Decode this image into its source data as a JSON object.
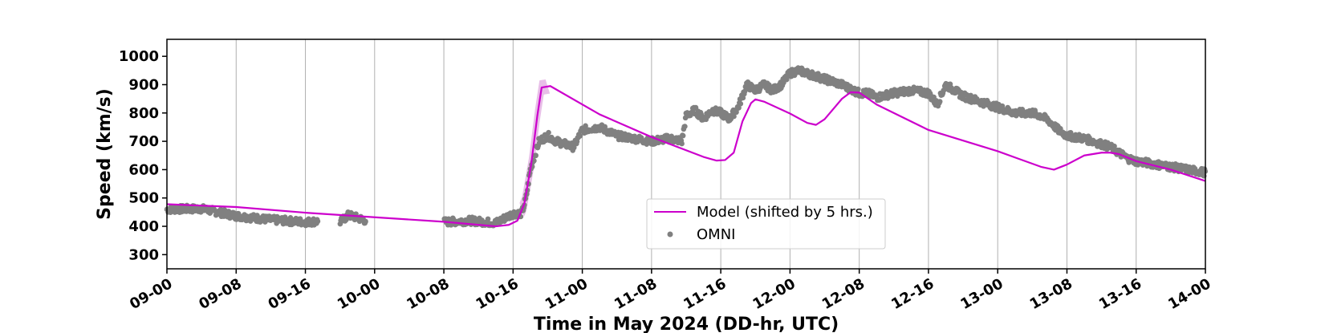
{
  "chart_data": {
    "type": "line",
    "xlabel": "Time in May 2024 (DD-hr, UTC)",
    "ylabel": "Speed (km/s)",
    "x_unit": "hours since 09-00",
    "xlim": [
      0,
      120
    ],
    "ylim": [
      250,
      1060
    ],
    "x_tick_labels": [
      "09-00",
      "09-08",
      "09-16",
      "10-00",
      "10-08",
      "10-16",
      "11-00",
      "11-08",
      "11-16",
      "12-00",
      "12-08",
      "12-16",
      "13-00",
      "13-08",
      "13-16",
      "14-00"
    ],
    "x_tick_values": [
      0,
      8,
      16,
      24,
      32,
      40,
      48,
      56,
      64,
      72,
      80,
      88,
      96,
      104,
      112,
      120
    ],
    "y_ticks": [
      300,
      400,
      500,
      600,
      700,
      800,
      900,
      1000
    ],
    "grid": "vertical lines at x ticks",
    "legend": {
      "position": "lower-center",
      "entries": [
        {
          "label": "Model (shifted by 5 hrs.)",
          "style": "line",
          "color": "#cc00cc"
        },
        {
          "label": "OMNI",
          "style": "marker",
          "color": "#808080"
        }
      ]
    },
    "series": [
      {
        "name": "Model (shifted by 5 hrs.)",
        "color": "#cc00cc",
        "x": [
          0,
          8,
          16,
          24,
          32,
          38,
          39.5,
          40.5,
          41.3,
          42.1,
          42.8,
          43.3,
          44.3,
          50,
          56,
          62,
          63.5,
          64.5,
          65.5,
          66.5,
          67.5,
          68,
          69,
          72,
          74,
          75,
          76,
          78,
          79,
          80,
          82,
          88,
          96,
          101,
          102.5,
          104,
          106,
          108,
          109,
          110,
          112,
          116,
          120
        ],
        "y": [
          478,
          468,
          448,
          432,
          416,
          400,
          405,
          420,
          480,
          620,
          790,
          890,
          895,
          795,
          715,
          645,
          632,
          634,
          660,
          770,
          835,
          848,
          840,
          798,
          765,
          758,
          778,
          850,
          873,
          872,
          830,
          740,
          665,
          610,
          600,
          618,
          650,
          660,
          660,
          655,
          630,
          600,
          560
        ],
        "band": {
          "color": "#e0a8e0",
          "x_range": [
            41,
            44
          ],
          "half_width": 25
        }
      },
      {
        "name": "OMNI",
        "color": "#808080",
        "knots_x": [
          0,
          4,
          8,
          12,
          16,
          17.5,
          19,
          20,
          21,
          22,
          23,
          24,
          32,
          35,
          38,
          40,
          41,
          41.5,
          42,
          43,
          44,
          45,
          46,
          47,
          48,
          50,
          52,
          54,
          56,
          58,
          59,
          59.5,
          60,
          61,
          62,
          63,
          64,
          65,
          66,
          67,
          68,
          69,
          70,
          71,
          72,
          73,
          74,
          76,
          78,
          80,
          81,
          82,
          84,
          86,
          88,
          89,
          90,
          92,
          94,
          96,
          98,
          100,
          101,
          102,
          103,
          104,
          106,
          108,
          109,
          110,
          111,
          112,
          114,
          116,
          118,
          120
        ],
        "knots_y": [
          460,
          462,
          437,
          423,
          415,
          418,
          null,
          415,
          440,
          430,
          420,
          null,
          415,
          420,
          412,
          445,
          445,
          500,
          600,
          700,
          720,
          700,
          690,
          680,
          740,
          750,
          720,
          710,
          700,
          710,
          705,
          700,
          790,
          810,
          780,
          810,
          800,
          780,
          820,
          900,
          880,
          900,
          880,
          900,
          940,
          950,
          940,
          920,
          900,
          870,
          870,
          855,
          870,
          880,
          870,
          830,
          900,
          860,
          840,
          820,
          800,
          800,
          790,
          770,
          740,
          720,
          710,
          690,
          680,
          660,
          640,
          630,
          620,
          610,
          600,
          590,
          575
        ]
      }
    ]
  }
}
